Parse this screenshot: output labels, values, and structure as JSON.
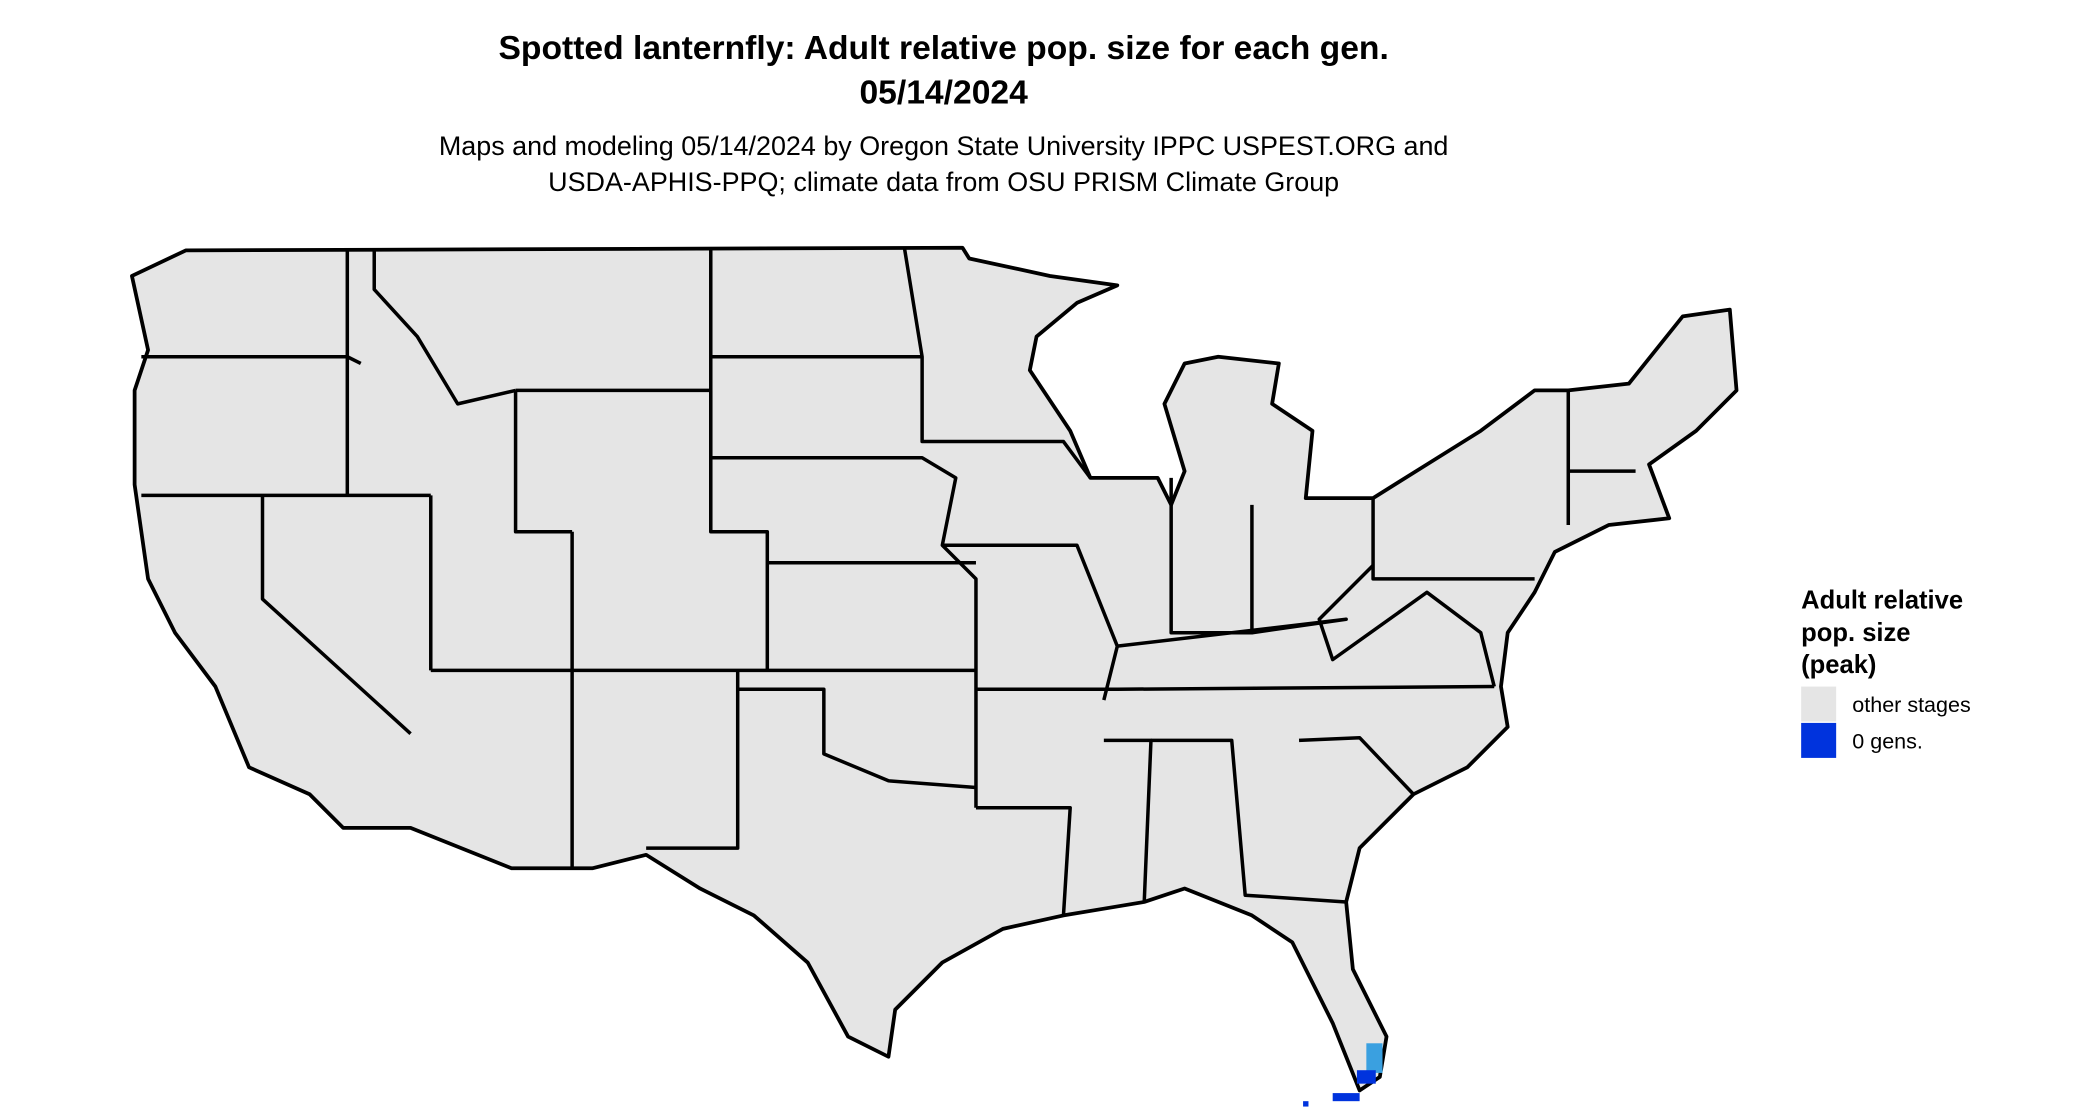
{
  "header": {
    "title": "Spotted lanternfly: Adult relative pop. size for each gen.",
    "date": "05/14/2024",
    "subtitle_lines": [
      "Maps and modeling 05/14/2024 by Oregon State University IPPC USPEST.ORG and",
      "USDA-APHIS-PPQ; climate data from OSU PRISM Climate Group"
    ]
  },
  "legend": {
    "title_lines": [
      "Adult relative",
      "pop. size",
      "(peak)"
    ],
    "items": [
      {
        "label": "other stages",
        "color": "#e5e5e5"
      },
      {
        "label": "0 gens.",
        "color": "#0033dd"
      }
    ]
  }
}
